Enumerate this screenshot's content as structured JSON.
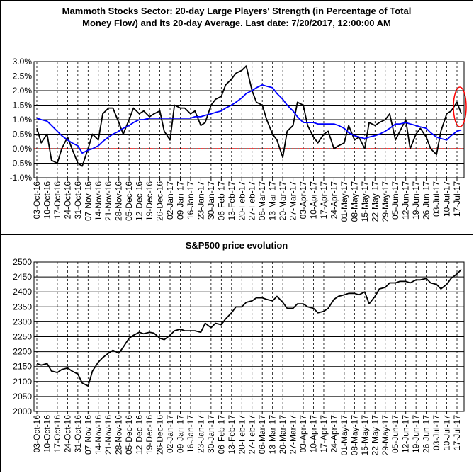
{
  "chart_data": [
    {
      "type": "line",
      "title": [
        "Mammoth Stocks Sector: 20-day Large Players' Strength (in Percentage of Total",
        "Money Flow) and its 20-day Average. Last date: 7/20/2017, 12:00:00 AM"
      ],
      "x": [
        "03-Oct-16",
        "06-Oct-16",
        "10-Oct-16",
        "13-Oct-16",
        "17-Oct-16",
        "20-Oct-16",
        "24-Oct-16",
        "27-Oct-16",
        "31-Oct-16",
        "03-Nov-16",
        "07-Nov-16",
        "10-Nov-16",
        "14-Nov-16",
        "17-Nov-16",
        "21-Nov-16",
        "24-Nov-16",
        "28-Nov-16",
        "01-Dec-16",
        "05-Dec-16",
        "08-Dec-16",
        "12-Dec-16",
        "15-Dec-16",
        "19-Dec-16",
        "22-Dec-16",
        "26-Dec-16",
        "29-Dec-16",
        "02-Jan-17",
        "05-Jan-17",
        "09-Jan-17",
        "12-Jan-17",
        "16-Jan-17",
        "19-Jan-17",
        "23-Jan-17",
        "26-Jan-17",
        "30-Jan-17",
        "02-Feb-17",
        "06-Feb-17",
        "09-Feb-17",
        "13-Feb-17",
        "16-Feb-17",
        "20-Feb-17",
        "23-Feb-17",
        "27-Feb-17",
        "02-Mar-17",
        "06-Mar-17",
        "09-Mar-17",
        "13-Mar-17",
        "16-Mar-17",
        "20-Mar-17",
        "23-Mar-17",
        "27-Mar-17",
        "30-Mar-17",
        "03-Apr-17",
        "06-Apr-17",
        "10-Apr-17",
        "13-Apr-17",
        "17-Apr-17",
        "20-Apr-17",
        "24-Apr-17",
        "27-Apr-17",
        "01-May-17",
        "04-May-17",
        "08-May-17",
        "11-May-17",
        "15-May-17",
        "18-May-17",
        "22-May-17",
        "25-May-17",
        "29-May-17",
        "01-Jun-17",
        "05-Jun-17",
        "08-Jun-17",
        "12-Jun-17",
        "15-Jun-17",
        "19-Jun-17",
        "22-Jun-17",
        "26-Jun-17",
        "29-Jun-17",
        "03-Jul-17",
        "06-Jul-17",
        "10-Jul-17",
        "13-Jul-17",
        "17-Jul-17",
        "20-Jul-17"
      ],
      "series": [
        {
          "color": "#000000",
          "values": [
            0.7,
            0.2,
            0.5,
            -0.4,
            -0.5,
            0.0,
            0.4,
            0.0,
            -0.5,
            -0.6,
            0.0,
            0.5,
            0.3,
            1.2,
            1.4,
            1.4,
            0.9,
            0.5,
            1.0,
            1.4,
            1.2,
            1.3,
            1.1,
            1.2,
            1.3,
            0.6,
            0.3,
            1.5,
            1.4,
            1.4,
            1.2,
            1.3,
            0.8,
            0.9,
            1.5,
            1.7,
            1.8,
            2.2,
            2.4,
            2.6,
            2.7,
            2.85,
            2.0,
            1.6,
            1.5,
            1.0,
            0.5,
            0.3,
            -0.3,
            0.6,
            0.8,
            1.6,
            1.5,
            0.8,
            0.4,
            0.2,
            0.5,
            0.6,
            0.0,
            0.1,
            0.2,
            0.8,
            0.3,
            0.4,
            0.0,
            0.9,
            0.8,
            0.9,
            1.0,
            1.2,
            0.3,
            0.6,
            1.0,
            0.0,
            0.5,
            0.7,
            0.4,
            0.0,
            -0.2,
            0.6,
            1.2,
            1.3,
            1.6,
            1.2
          ]
        },
        {
          "color": "#0000ff",
          "values": [
            1.05,
            1.0,
            0.95,
            0.8,
            0.6,
            0.45,
            0.3,
            0.2,
            0.1,
            -0.15,
            -0.05,
            0.0,
            0.1,
            0.25,
            0.4,
            0.5,
            0.6,
            0.7,
            0.8,
            0.9,
            1.0,
            1.0,
            1.05,
            1.05,
            1.05,
            1.05,
            1.05,
            1.05,
            1.05,
            1.05,
            1.05,
            1.1,
            1.1,
            1.15,
            1.2,
            1.25,
            1.3,
            1.4,
            1.5,
            1.6,
            1.75,
            1.9,
            2.0,
            2.1,
            2.2,
            2.15,
            2.1,
            1.9,
            1.7,
            1.5,
            1.3,
            1.1,
            0.9,
            0.9,
            0.9,
            0.85,
            0.85,
            0.85,
            0.85,
            0.8,
            0.7,
            0.55,
            0.45,
            0.4,
            0.35,
            0.4,
            0.45,
            0.5,
            0.6,
            0.7,
            0.85,
            0.85,
            0.9,
            0.85,
            0.8,
            0.75,
            0.7,
            0.55,
            0.4,
            0.35,
            0.3,
            0.45,
            0.6,
            0.65
          ]
        }
      ],
      "ylim": [
        -1.0,
        3.0
      ],
      "yticks": [
        {
          "value": 3.0,
          "label": "3.0%"
        },
        {
          "value": 2.5,
          "label": "2.5%"
        },
        {
          "value": 2.0,
          "label": "2.0%"
        },
        {
          "value": 1.5,
          "label": "1.5%"
        },
        {
          "value": 1.0,
          "label": "1.0%"
        },
        {
          "value": 0.5,
          "label": "0.5%"
        },
        {
          "value": 0,
          "label": "0.0%"
        },
        {
          "value": -0.5,
          "label": "-0.5%"
        },
        {
          "value": -1.0,
          "label": "-1.0%"
        }
      ],
      "xticks": [
        "03-Oct-16",
        "10-Oct-16",
        "17-Oct-16",
        "24-Oct-16",
        "31-Oct-16",
        "07-Nov-16",
        "14-Nov-16",
        "21-Nov-16",
        "28-Nov-16",
        "05-Dec-16",
        "12-Dec-16",
        "19-Dec-16",
        "26-Dec-16",
        "02-Jan-17",
        "09-Jan-17",
        "16-Jan-17",
        "23-Jan-17",
        "30-Jan-17",
        "06-Feb-17",
        "13-Feb-17",
        "20-Feb-17",
        "27-Feb-17",
        "06-Mar-17",
        "13-Mar-17",
        "20-Mar-17",
        "27-Mar-17",
        "03-Apr-17",
        "10-Apr-17",
        "17-Apr-17",
        "24-Apr-17",
        "01-May-17",
        "08-May-17",
        "15-May-17",
        "22-May-17",
        "29-May-17",
        "05-Jun-17",
        "12-Jun-17",
        "19-Jun-17",
        "26-Jun-17",
        "03-Jul-17",
        "10-Jul-17",
        "17-Jul-17"
      ],
      "reference_line": {
        "value": 0,
        "color": "#ff0000"
      },
      "grid": true
    },
    {
      "type": "line",
      "title": [
        "S&P500 price evolution"
      ],
      "x": [
        "03-Oct-16",
        "06-Oct-16",
        "10-Oct-16",
        "13-Oct-16",
        "17-Oct-16",
        "20-Oct-16",
        "24-Oct-16",
        "27-Oct-16",
        "31-Oct-16",
        "03-Nov-16",
        "07-Nov-16",
        "10-Nov-16",
        "14-Nov-16",
        "17-Nov-16",
        "21-Nov-16",
        "24-Nov-16",
        "28-Nov-16",
        "01-Dec-16",
        "05-Dec-16",
        "08-Dec-16",
        "12-Dec-16",
        "15-Dec-16",
        "19-Dec-16",
        "22-Dec-16",
        "26-Dec-16",
        "29-Dec-16",
        "02-Jan-17",
        "05-Jan-17",
        "09-Jan-17",
        "12-Jan-17",
        "16-Jan-17",
        "19-Jan-17",
        "23-Jan-17",
        "26-Jan-17",
        "30-Jan-17",
        "02-Feb-17",
        "06-Feb-17",
        "09-Feb-17",
        "13-Feb-17",
        "16-Feb-17",
        "20-Feb-17",
        "23-Feb-17",
        "27-Feb-17",
        "02-Mar-17",
        "06-Mar-17",
        "09-Mar-17",
        "13-Mar-17",
        "16-Mar-17",
        "20-Mar-17",
        "23-Mar-17",
        "27-Mar-17",
        "30-Mar-17",
        "03-Apr-17",
        "06-Apr-17",
        "10-Apr-17",
        "13-Apr-17",
        "17-Apr-17",
        "20-Apr-17",
        "24-Apr-17",
        "27-Apr-17",
        "01-May-17",
        "04-May-17",
        "08-May-17",
        "11-May-17",
        "15-May-17",
        "18-May-17",
        "22-May-17",
        "25-May-17",
        "29-May-17",
        "01-Jun-17",
        "05-Jun-17",
        "08-Jun-17",
        "12-Jun-17",
        "15-Jun-17",
        "19-Jun-17",
        "22-Jun-17",
        "26-Jun-17",
        "29-Jun-17",
        "03-Jul-17",
        "06-Jul-17",
        "10-Jul-17",
        "13-Jul-17",
        "17-Jul-17",
        "20-Jul-17"
      ],
      "series": [
        {
          "color": "#000000",
          "values": [
            2160,
            2155,
            2160,
            2135,
            2130,
            2140,
            2145,
            2135,
            2125,
            2095,
            2085,
            2135,
            2165,
            2180,
            2195,
            2205,
            2195,
            2215,
            2245,
            2255,
            2265,
            2260,
            2265,
            2262,
            2245,
            2240,
            2255,
            2270,
            2275,
            2270,
            2270,
            2270,
            2265,
            2295,
            2280,
            2295,
            2290,
            2310,
            2330,
            2350,
            2350,
            2365,
            2370,
            2380,
            2380,
            2375,
            2370,
            2385,
            2365,
            2345,
            2345,
            2360,
            2360,
            2350,
            2345,
            2330,
            2335,
            2345,
            2375,
            2385,
            2390,
            2395,
            2395,
            2390,
            2400,
            2360,
            2385,
            2410,
            2415,
            2430,
            2430,
            2435,
            2435,
            2430,
            2440,
            2440,
            2445,
            2430,
            2425,
            2410,
            2425,
            2445,
            2460,
            2475
          ]
        }
      ],
      "ylim": [
        2000,
        2500
      ],
      "yticks": [
        2500,
        2450,
        2400,
        2350,
        2300,
        2250,
        2200,
        2150,
        2100,
        2050,
        2000
      ],
      "xticks": [
        "03-Oct-16",
        "10-Oct-16",
        "17-Oct-16",
        "24-Oct-16",
        "31-Oct-16",
        "07-Nov-16",
        "14-Nov-16",
        "21-Nov-16",
        "28-Nov-16",
        "05-Dec-16",
        "12-Dec-16",
        "19-Dec-16",
        "26-Dec-16",
        "02-Jan-17",
        "09-Jan-17",
        "16-Jan-17",
        "23-Jan-17",
        "30-Jan-17",
        "06-Feb-17",
        "13-Feb-17",
        "20-Feb-17",
        "27-Feb-17",
        "06-Mar-17",
        "13-Mar-17",
        "20-Mar-17",
        "27-Mar-17",
        "03-Apr-17",
        "10-Apr-17",
        "17-Apr-17",
        "24-Apr-17",
        "01-May-17",
        "08-May-17",
        "15-May-17",
        "22-May-17",
        "29-May-17",
        "05-Jun-17",
        "12-Jun-17",
        "19-Jun-17",
        "26-Jun-17",
        "03-Jul-17",
        "10-Jul-17",
        "17-Jul-17"
      ],
      "grid": true
    }
  ]
}
